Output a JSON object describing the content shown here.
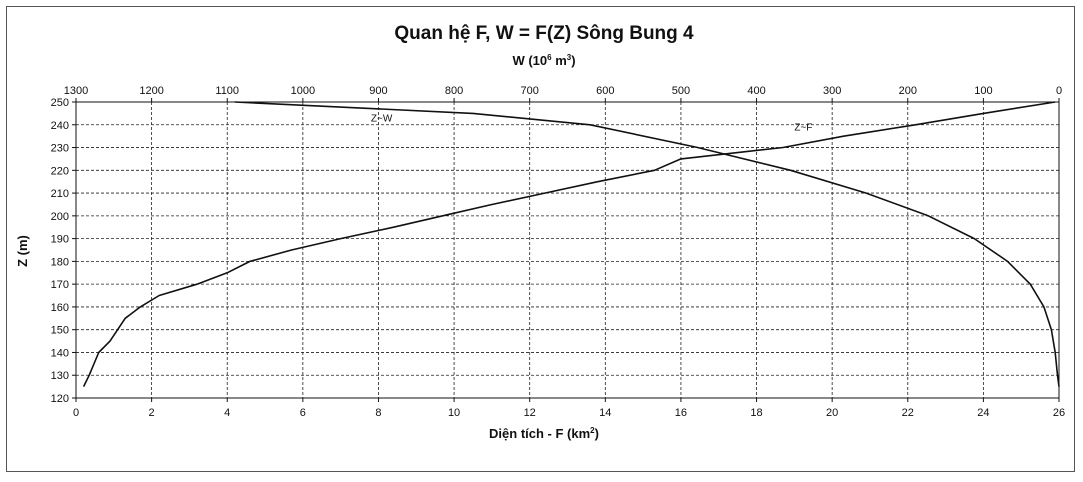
{
  "chart_data": {
    "type": "line",
    "title": "Quan hệ F, W = F(Z) Sông Bung 4",
    "x_bottom": {
      "label_main": "Diện tích - F (km",
      "label_sup": "2",
      "label_end": ")",
      "range": [
        0,
        26
      ],
      "ticks": [
        "0",
        "2",
        "4",
        "6",
        "8",
        "10",
        "12",
        "14",
        "16",
        "18",
        "20",
        "22",
        "24",
        "26"
      ]
    },
    "x_top": {
      "label_main": "W (10",
      "label_sup1": "6",
      "label_mid": " m",
      "label_sup2": "3",
      "label_end": ")",
      "range": [
        1300,
        0
      ],
      "reversed": true,
      "ticks": [
        "1300",
        "1200",
        "1100",
        "1000",
        "900",
        "800",
        "700",
        "600",
        "500",
        "400",
        "300",
        "200",
        "100",
        "0"
      ]
    },
    "y": {
      "label": "Z (m)",
      "range": [
        120,
        250
      ],
      "ticks": [
        "120",
        "130",
        "140",
        "150",
        "160",
        "170",
        "180",
        "190",
        "200",
        "210",
        "220",
        "230",
        "240",
        "250"
      ]
    },
    "grid": true,
    "series": [
      {
        "name": "Z~F",
        "axis": "bottom",
        "points": [
          [
            0.2,
            125
          ],
          [
            0.35,
            130
          ],
          [
            0.6,
            140
          ],
          [
            0.9,
            145
          ],
          [
            1.3,
            155
          ],
          [
            1.7,
            160
          ],
          [
            2.2,
            165
          ],
          [
            3.2,
            170
          ],
          [
            4.0,
            175
          ],
          [
            4.6,
            180
          ],
          [
            5.7,
            185
          ],
          [
            7.0,
            190
          ],
          [
            8.4,
            195
          ],
          [
            9.7,
            200
          ],
          [
            11.0,
            205
          ],
          [
            12.4,
            210
          ],
          [
            13.8,
            215
          ],
          [
            15.3,
            220
          ],
          [
            16.0,
            225
          ],
          [
            18.7,
            230
          ],
          [
            20.3,
            235
          ],
          [
            22.2,
            240
          ],
          [
            24.0,
            245
          ],
          [
            25.9,
            250
          ]
        ]
      },
      {
        "name": "Z~W",
        "axis": "top",
        "points": [
          [
            0,
            125
          ],
          [
            2,
            130
          ],
          [
            5,
            140
          ],
          [
            10,
            150
          ],
          [
            20,
            160
          ],
          [
            38,
            170
          ],
          [
            68,
            180
          ],
          [
            112,
            190
          ],
          [
            173,
            200
          ],
          [
            255,
            210
          ],
          [
            355,
            220
          ],
          [
            478,
            230
          ],
          [
            620,
            240
          ],
          [
            775,
            245
          ],
          [
            1090,
            250
          ]
        ]
      }
    ],
    "annotations": [
      "Z~W",
      "Z~F"
    ]
  }
}
